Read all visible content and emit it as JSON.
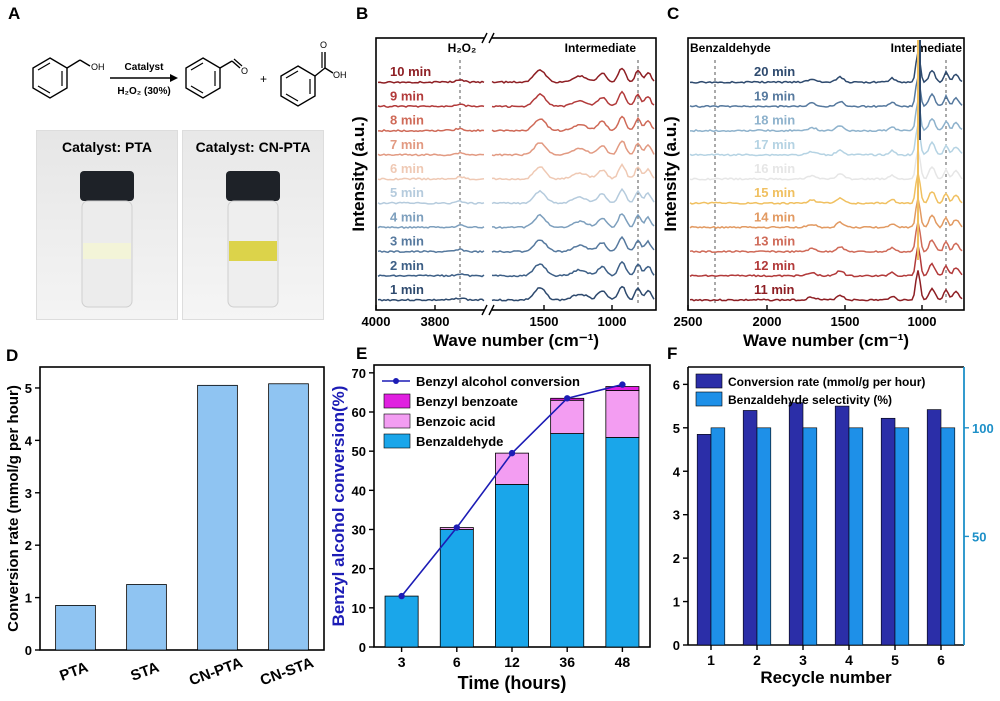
{
  "panels": {
    "A": "A",
    "B": "B",
    "C": "C",
    "D": "D",
    "E": "E",
    "F": "F"
  },
  "panel_a": {
    "reaction_catalyst": "Catalyst",
    "reaction_oxidant": "H₂O₂ (30%)",
    "plus": "+",
    "oh_label_left": "OH",
    "o_label_mid": "O",
    "o_label_right": "O",
    "oh_label_right": "OH",
    "photo_left_caption": "Catalyst: PTA",
    "photo_right_caption": "Catalyst: CN-PTA"
  },
  "chart_data": [
    {
      "id": "B",
      "type": "line",
      "xlabel": "Wave number (cm⁻¹)",
      "ylabel": "Intensity (a.u.)",
      "annotations": [
        "H₂O₂",
        "Intermediate"
      ],
      "xticks": [
        "4000",
        "3800",
        "1500",
        "1000"
      ],
      "series": [
        {
          "name": "1 min",
          "color": "#2e4a6e"
        },
        {
          "name": "2 min",
          "color": "#3d5f86"
        },
        {
          "name": "3 min",
          "color": "#56799e"
        },
        {
          "name": "4 min",
          "color": "#7d9fbd"
        },
        {
          "name": "5 min",
          "color": "#b5cbdd"
        },
        {
          "name": "6 min",
          "color": "#efc9b4"
        },
        {
          "name": "7 min",
          "color": "#e29a82"
        },
        {
          "name": "8 min",
          "color": "#cf6a58"
        },
        {
          "name": "9 min",
          "color": "#b23a3a"
        },
        {
          "name": "10 min",
          "color": "#8e1f24"
        }
      ]
    },
    {
      "id": "C",
      "type": "line",
      "xlabel": "Wave number (cm⁻¹)",
      "ylabel": "Intensity (a.u.)",
      "annotations": [
        "Benzaldehyde",
        "Intermediate"
      ],
      "xticks": [
        "2500",
        "2000",
        "1500",
        "1000"
      ],
      "series": [
        {
          "name": "11 min",
          "color": "#8e1f24"
        },
        {
          "name": "12 min",
          "color": "#b23a3a"
        },
        {
          "name": "13 min",
          "color": "#cf6a58"
        },
        {
          "name": "14 min",
          "color": "#e29a62"
        },
        {
          "name": "15 min",
          "color": "#f0c060"
        },
        {
          "name": "16 min",
          "color": "#e6e6e6"
        },
        {
          "name": "17 min",
          "color": "#b5d3e3"
        },
        {
          "name": "18 min",
          "color": "#8eb2cc"
        },
        {
          "name": "19 min",
          "color": "#56799e"
        },
        {
          "name": "20 min",
          "color": "#2e4a6e"
        }
      ]
    },
    {
      "id": "D",
      "type": "bar",
      "categories": [
        "PTA",
        "STA",
        "CN-PTA",
        "CN-STA"
      ],
      "values": [
        0.85,
        1.25,
        5.05,
        5.08
      ],
      "xlabel": "",
      "ylabel": "Conversion rate (mmol/g per hour)",
      "ylim": [
        0,
        5.4
      ],
      "yticks": [
        0,
        1,
        2,
        3,
        4,
        5
      ],
      "color": "#8fc4f2"
    },
    {
      "id": "E",
      "type": "bar",
      "stacked": true,
      "categories": [
        "3",
        "6",
        "12",
        "36",
        "48"
      ],
      "xlabel": "Time (hours)",
      "ylabel": "Benzyl alcohol conversion(%)",
      "ylim": [
        0,
        72
      ],
      "yticks": [
        0,
        10,
        20,
        30,
        40,
        50,
        60,
        70
      ],
      "legend": "top-left",
      "series": [
        {
          "name": "Benzaldehyde",
          "values": [
            13,
            30,
            41.5,
            54.5,
            53.5
          ],
          "color": "#1aa6ea"
        },
        {
          "name": "Benzoic acid",
          "values": [
            0,
            0.5,
            8,
            8.5,
            12
          ],
          "color": "#f39df2"
        },
        {
          "name": "Benzyl benzoate",
          "values": [
            0,
            0,
            0,
            0.5,
            1
          ],
          "color": "#e020e0"
        }
      ],
      "line": {
        "name": "Benzyl alcohol conversion",
        "values": [
          13,
          30.5,
          49.5,
          63.5,
          67
        ],
        "color": "#1c1cb5"
      }
    },
    {
      "id": "F",
      "type": "bar",
      "categories": [
        "1",
        "2",
        "3",
        "4",
        "5",
        "6"
      ],
      "xlabel": "Recycle number",
      "ylabel": "",
      "ylim": [
        0,
        6.4
      ],
      "yticks": [
        0,
        1,
        2,
        3,
        4,
        5,
        6
      ],
      "y2lim": [
        0,
        128
      ],
      "y2ticks": [
        50,
        100
      ],
      "legend": "top",
      "series": [
        {
          "name": "Conversion rate (mmol/g per hour)",
          "values": [
            4.85,
            5.4,
            5.58,
            5.5,
            5.22,
            5.42
          ],
          "color": "#2b2ea8",
          "axis": "left"
        },
        {
          "name": "Benzaldehyde selectivity (%)",
          "values": [
            100,
            100,
            100,
            100,
            100,
            100
          ],
          "color": "#1e90e8",
          "axis": "right"
        }
      ]
    }
  ]
}
